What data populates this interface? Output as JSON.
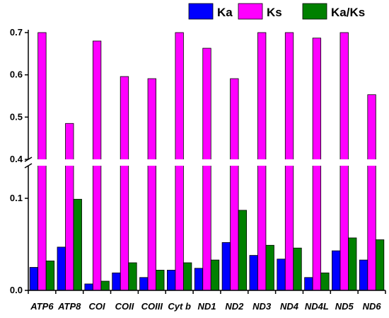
{
  "chart_data": {
    "type": "bar",
    "categories": [
      "ATP6",
      "ATP8",
      "COI",
      "COII",
      "COIII",
      "Cyt b",
      "ND1",
      "ND2",
      "ND3",
      "ND4",
      "ND4L",
      "ND5",
      "ND6"
    ],
    "series": [
      {
        "name": "Ka",
        "color": "#0000ff",
        "values": [
          0.025,
          0.047,
          0.007,
          0.019,
          0.014,
          0.022,
          0.024,
          0.052,
          0.038,
          0.034,
          0.014,
          0.043,
          0.033
        ]
      },
      {
        "name": "Ks",
        "color": "#ff00ff",
        "values": [
          0.7,
          0.485,
          0.68,
          0.596,
          0.591,
          0.7,
          0.663,
          0.591,
          0.7,
          0.7,
          0.687,
          0.7,
          0.553
        ]
      },
      {
        "name": "Ka/Ks",
        "color": "#008000",
        "values": [
          0.032,
          0.099,
          0.01,
          0.03,
          0.022,
          0.03,
          0.033,
          0.087,
          0.049,
          0.046,
          0.019,
          0.057,
          0.055
        ]
      }
    ],
    "axis_break": {
      "lower": [
        0,
        0.125
      ],
      "upper": [
        0.4,
        0.7
      ]
    },
    "yticks_lower": [
      "0.0",
      "0.1"
    ],
    "yticks_upper": [
      "0.4",
      "0.5",
      "0.6",
      "0.7"
    ],
    "title": "",
    "xlabel": "",
    "ylabel": "",
    "grid": false,
    "legend_position": "top-right"
  }
}
